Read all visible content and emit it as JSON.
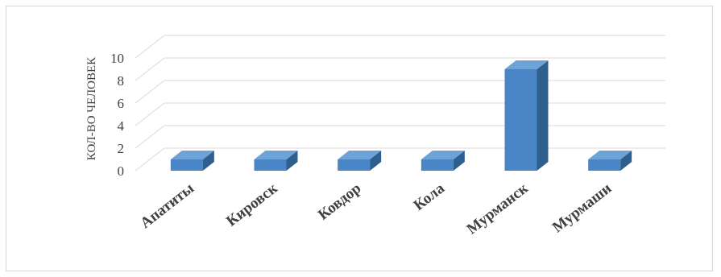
{
  "chart_data": {
    "type": "bar",
    "title": "",
    "xlabel": "",
    "ylabel": "КОЛ-ВО ЧЕЛОВЕК",
    "categories": [
      "Апатиты",
      "Кировск",
      "Ковдор",
      "Кола",
      "Мурманск",
      "Мурмаши"
    ],
    "values": [
      1,
      1,
      1,
      1,
      9,
      1
    ],
    "ylim": [
      0,
      10
    ],
    "yticks": [
      "0",
      "2",
      "4",
      "6",
      "8",
      "10"
    ],
    "grid": true,
    "legend": "none",
    "style": "3d-column",
    "colors": {
      "bar_front": "#4a86c5",
      "bar_side": "#2f5f8e",
      "bar_top": "#6ea3d8",
      "grid": "#d9d9d9",
      "text": "#404040"
    }
  }
}
